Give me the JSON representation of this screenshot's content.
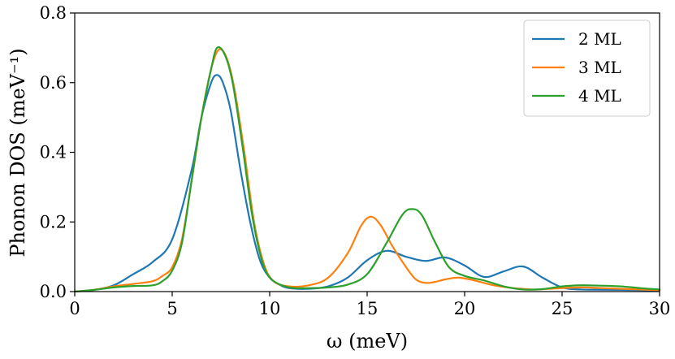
{
  "chart_data": {
    "type": "line",
    "xlabel": "ω (meV)",
    "ylabel": "Phonon DOS (meV⁻¹)",
    "xlim": [
      0,
      30
    ],
    "ylim": [
      0,
      0.8
    ],
    "xticks": [
      0,
      5,
      10,
      15,
      20,
      25,
      30
    ],
    "yticks": [
      0.0,
      0.2,
      0.4,
      0.6,
      0.8
    ],
    "xtick_labels": [
      "0",
      "5",
      "10",
      "15",
      "20",
      "25",
      "30"
    ],
    "ytick_labels": [
      "0.0",
      "0.2",
      "0.4",
      "0.6",
      "0.8"
    ],
    "grid": false,
    "legend_position": "top-right",
    "series": [
      {
        "name": "2 ML",
        "color": "#1f77b4",
        "points": [
          [
            0,
            0.0
          ],
          [
            1,
            0.005
          ],
          [
            2,
            0.018
          ],
          [
            3,
            0.05
          ],
          [
            4,
            0.085
          ],
          [
            5,
            0.15
          ],
          [
            6,
            0.35
          ],
          [
            6.5,
            0.5
          ],
          [
            7,
            0.6
          ],
          [
            7.3,
            0.622
          ],
          [
            7.6,
            0.6
          ],
          [
            8,
            0.52
          ],
          [
            8.5,
            0.35
          ],
          [
            9,
            0.2
          ],
          [
            9.5,
            0.09
          ],
          [
            10,
            0.04
          ],
          [
            10.5,
            0.02
          ],
          [
            11,
            0.01
          ],
          [
            12,
            0.008
          ],
          [
            13,
            0.015
          ],
          [
            14,
            0.04
          ],
          [
            15,
            0.09
          ],
          [
            16,
            0.117
          ],
          [
            17,
            0.1
          ],
          [
            18,
            0.088
          ],
          [
            19,
            0.098
          ],
          [
            20,
            0.075
          ],
          [
            21,
            0.042
          ],
          [
            22,
            0.058
          ],
          [
            23,
            0.072
          ],
          [
            24,
            0.04
          ],
          [
            25,
            0.012
          ],
          [
            26,
            0.006
          ],
          [
            28,
            0.005
          ],
          [
            30,
            0.003
          ]
        ]
      },
      {
        "name": "3 ML",
        "color": "#ff7f0e",
        "points": [
          [
            0,
            0.0
          ],
          [
            1,
            0.005
          ],
          [
            2,
            0.015
          ],
          [
            3,
            0.022
          ],
          [
            4,
            0.03
          ],
          [
            4.5,
            0.045
          ],
          [
            5,
            0.07
          ],
          [
            5.5,
            0.15
          ],
          [
            6,
            0.32
          ],
          [
            6.5,
            0.5
          ],
          [
            7,
            0.64
          ],
          [
            7.4,
            0.695
          ],
          [
            7.8,
            0.67
          ],
          [
            8.2,
            0.58
          ],
          [
            8.7,
            0.4
          ],
          [
            9.2,
            0.2
          ],
          [
            9.7,
            0.08
          ],
          [
            10.2,
            0.03
          ],
          [
            11,
            0.015
          ],
          [
            12,
            0.018
          ],
          [
            13,
            0.04
          ],
          [
            14,
            0.11
          ],
          [
            14.7,
            0.19
          ],
          [
            15.2,
            0.215
          ],
          [
            15.7,
            0.19
          ],
          [
            16.3,
            0.13
          ],
          [
            17,
            0.07
          ],
          [
            17.5,
            0.035
          ],
          [
            18,
            0.025
          ],
          [
            18.5,
            0.028
          ],
          [
            19,
            0.035
          ],
          [
            19.7,
            0.04
          ],
          [
            20.5,
            0.032
          ],
          [
            21.5,
            0.018
          ],
          [
            22.5,
            0.01
          ],
          [
            23.5,
            0.006
          ],
          [
            24,
            0.007
          ],
          [
            25,
            0.01
          ],
          [
            26,
            0.012
          ],
          [
            27,
            0.01
          ],
          [
            28,
            0.008
          ],
          [
            29,
            0.006
          ],
          [
            30,
            0.004
          ]
        ]
      },
      {
        "name": "4 ML",
        "color": "#2ca02c",
        "points": [
          [
            0,
            0.0
          ],
          [
            1,
            0.005
          ],
          [
            2,
            0.012
          ],
          [
            3,
            0.016
          ],
          [
            4,
            0.018
          ],
          [
            4.5,
            0.03
          ],
          [
            5,
            0.06
          ],
          [
            5.5,
            0.14
          ],
          [
            6,
            0.32
          ],
          [
            6.5,
            0.5
          ],
          [
            7,
            0.64
          ],
          [
            7.3,
            0.7
          ],
          [
            7.7,
            0.68
          ],
          [
            8.1,
            0.6
          ],
          [
            8.6,
            0.42
          ],
          [
            9.1,
            0.22
          ],
          [
            9.6,
            0.09
          ],
          [
            10.1,
            0.035
          ],
          [
            11,
            0.012
          ],
          [
            12,
            0.01
          ],
          [
            13,
            0.012
          ],
          [
            14,
            0.02
          ],
          [
            15,
            0.05
          ],
          [
            16,
            0.14
          ],
          [
            16.8,
            0.22
          ],
          [
            17.3,
            0.237
          ],
          [
            17.8,
            0.22
          ],
          [
            18.5,
            0.14
          ],
          [
            19.2,
            0.07
          ],
          [
            20,
            0.045
          ],
          [
            21,
            0.032
          ],
          [
            22,
            0.015
          ],
          [
            23,
            0.006
          ],
          [
            24,
            0.007
          ],
          [
            25,
            0.015
          ],
          [
            26,
            0.018
          ],
          [
            27,
            0.017
          ],
          [
            28,
            0.015
          ],
          [
            29,
            0.01
          ],
          [
            30,
            0.006
          ]
        ]
      }
    ]
  }
}
